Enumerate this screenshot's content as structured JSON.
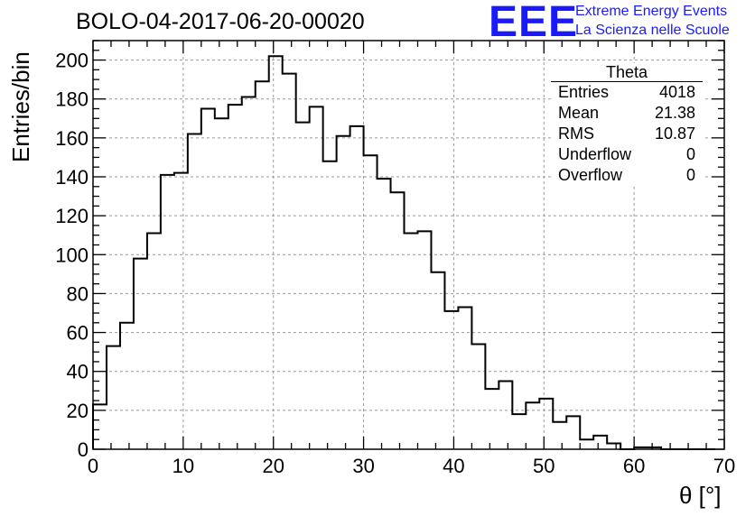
{
  "header": {
    "title": "BOLO-04-2017-06-20-00020",
    "logo_mark": "EEE",
    "logo_line1": "Extreme Energy Events",
    "logo_line2": "La Scienza nelle Scuole"
  },
  "stats_box": {
    "title": "Theta",
    "rows": [
      {
        "label": "Entries",
        "value": "4018"
      },
      {
        "label": "Mean",
        "value": "21.38"
      },
      {
        "label": "RMS",
        "value": "10.87"
      },
      {
        "label": "Underflow",
        "value": "0"
      },
      {
        "label": "Overflow",
        "value": "0"
      }
    ]
  },
  "chart_data": {
    "type": "bar",
    "histogram": true,
    "xlabel": "θ [°]",
    "ylabel": "Entries/bin",
    "xlim": [
      0,
      70
    ],
    "ylim": [
      0,
      210
    ],
    "x_ticks": [
      0,
      10,
      20,
      30,
      40,
      50,
      60,
      70
    ],
    "y_ticks": [
      0,
      20,
      40,
      60,
      80,
      100,
      120,
      140,
      160,
      180,
      200
    ],
    "grid": true,
    "bin_width": 1.5,
    "bin_edges_start": 0,
    "values": [
      23,
      53,
      65,
      98,
      111,
      141,
      142,
      162,
      175,
      170,
      177,
      181,
      189,
      202,
      193,
      168,
      176,
      148,
      161,
      166,
      151,
      139,
      132,
      111,
      112,
      91,
      71,
      73,
      54,
      31,
      35,
      18,
      24,
      26,
      14,
      17,
      5,
      7,
      3,
      0,
      1,
      1,
      0,
      0,
      0,
      0
    ],
    "line_color": "#000000",
    "grid_color": "#9a9a9a"
  }
}
